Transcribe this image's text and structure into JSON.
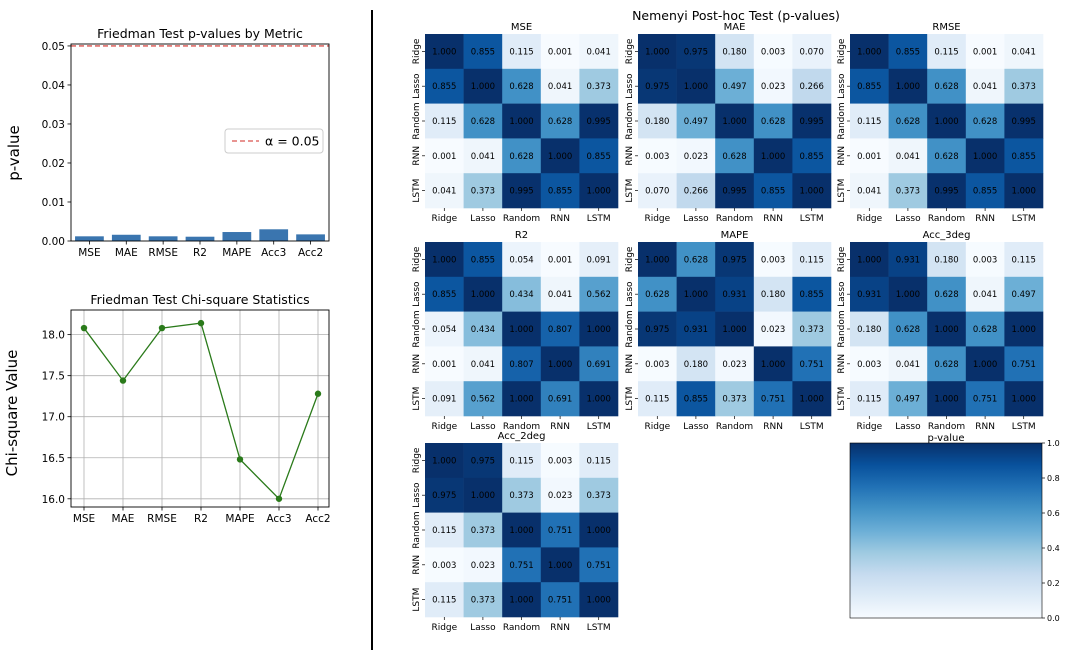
{
  "chart_data": [
    {
      "id": "pvalues",
      "type": "bar",
      "title": "Friedman Test p-values by Metric",
      "xlabel": "",
      "ylabel": "p-value",
      "categories": [
        "MSE",
        "MAE",
        "RMSE",
        "R2",
        "MAPE",
        "Acc3",
        "Acc2"
      ],
      "values": [
        0.0012,
        0.0016,
        0.0012,
        0.0011,
        0.0023,
        0.003,
        0.0017
      ],
      "ylim": [
        0,
        0.0505
      ],
      "yticks": [
        0.0,
        0.01,
        0.02,
        0.03,
        0.04,
        0.05
      ],
      "ytick_labels": [
        "0.00",
        "0.01",
        "0.02",
        "0.03",
        "0.04",
        "0.05"
      ],
      "threshold": 0.05,
      "legend": [
        "α = 0.05"
      ],
      "bar_color": "#3a75af",
      "line_color": "#d9534f"
    },
    {
      "id": "chisq",
      "type": "line",
      "title": "Friedman Test Chi-square Statistics",
      "xlabel": "",
      "ylabel": "Chi-square Value",
      "categories": [
        "MSE",
        "MAE",
        "RMSE",
        "R2",
        "MAPE",
        "Acc3",
        "Acc2"
      ],
      "values": [
        18.08,
        17.44,
        18.08,
        18.14,
        16.48,
        16.0,
        17.28
      ],
      "ylim": [
        15.9,
        18.3
      ],
      "yticks": [
        16.0,
        16.5,
        17.0,
        17.5,
        18.0
      ],
      "ytick_labels": [
        "16.0",
        "16.5",
        "17.0",
        "17.5",
        "18.0"
      ],
      "grid": true,
      "line_color": "#2a7a1a"
    },
    {
      "id": "nemenyi",
      "type": "heatmap",
      "title": "Nemenyi Post-hoc Test (p-values)",
      "labels": [
        "Ridge",
        "Lasso",
        "Random",
        "RNN",
        "LSTM"
      ],
      "colorbar": {
        "label": "p-value",
        "range": [
          0,
          1
        ],
        "ticks": [
          "0.0",
          "0.2",
          "0.4",
          "0.6",
          "0.8",
          "1.0"
        ],
        "colormap": "Blues"
      },
      "matrices": [
        {
          "name": "MSE",
          "values": [
            [
              1.0,
              0.855,
              0.115,
              0.001,
              0.041
            ],
            [
              0.855,
              1.0,
              0.628,
              0.041,
              0.373
            ],
            [
              0.115,
              0.628,
              1.0,
              0.628,
              0.995
            ],
            [
              0.001,
              0.041,
              0.628,
              1.0,
              0.855
            ],
            [
              0.041,
              0.373,
              0.995,
              0.855,
              1.0
            ]
          ]
        },
        {
          "name": "MAE",
          "values": [
            [
              1.0,
              0.975,
              0.18,
              0.003,
              0.07
            ],
            [
              0.975,
              1.0,
              0.497,
              0.023,
              0.266
            ],
            [
              0.18,
              0.497,
              1.0,
              0.628,
              0.995
            ],
            [
              0.003,
              0.023,
              0.628,
              1.0,
              0.855
            ],
            [
              0.07,
              0.266,
              0.995,
              0.855,
              1.0
            ]
          ]
        },
        {
          "name": "RMSE",
          "values": [
            [
              1.0,
              0.855,
              0.115,
              0.001,
              0.041
            ],
            [
              0.855,
              1.0,
              0.628,
              0.041,
              0.373
            ],
            [
              0.115,
              0.628,
              1.0,
              0.628,
              0.995
            ],
            [
              0.001,
              0.041,
              0.628,
              1.0,
              0.855
            ],
            [
              0.041,
              0.373,
              0.995,
              0.855,
              1.0
            ]
          ]
        },
        {
          "name": "R2",
          "values": [
            [
              1.0,
              0.855,
              0.054,
              0.001,
              0.091
            ],
            [
              0.855,
              1.0,
              0.434,
              0.041,
              0.562
            ],
            [
              0.054,
              0.434,
              1.0,
              0.807,
              1.0
            ],
            [
              0.001,
              0.041,
              0.807,
              1.0,
              0.691
            ],
            [
              0.091,
              0.562,
              1.0,
              0.691,
              1.0
            ]
          ]
        },
        {
          "name": "MAPE",
          "values": [
            [
              1.0,
              0.628,
              0.975,
              0.003,
              0.115
            ],
            [
              0.628,
              1.0,
              0.931,
              0.18,
              0.855
            ],
            [
              0.975,
              0.931,
              1.0,
              0.023,
              0.373
            ],
            [
              0.003,
              0.18,
              0.023,
              1.0,
              0.751
            ],
            [
              0.115,
              0.855,
              0.373,
              0.751,
              1.0
            ]
          ]
        },
        {
          "name": "Acc_3deg",
          "values": [
            [
              1.0,
              0.931,
              0.18,
              0.003,
              0.115
            ],
            [
              0.931,
              1.0,
              0.628,
              0.041,
              0.497
            ],
            [
              0.18,
              0.628,
              1.0,
              0.628,
              1.0
            ],
            [
              0.003,
              0.041,
              0.628,
              1.0,
              0.751
            ],
            [
              0.115,
              0.497,
              1.0,
              0.751,
              1.0
            ]
          ]
        },
        {
          "name": "Acc_2deg",
          "values": [
            [
              1.0,
              0.975,
              0.115,
              0.003,
              0.115
            ],
            [
              0.975,
              1.0,
              0.373,
              0.023,
              0.373
            ],
            [
              0.115,
              0.373,
              1.0,
              0.751,
              1.0
            ],
            [
              0.003,
              0.023,
              0.751,
              1.0,
              0.751
            ],
            [
              0.115,
              0.373,
              1.0,
              0.751,
              1.0
            ]
          ]
        }
      ]
    }
  ]
}
